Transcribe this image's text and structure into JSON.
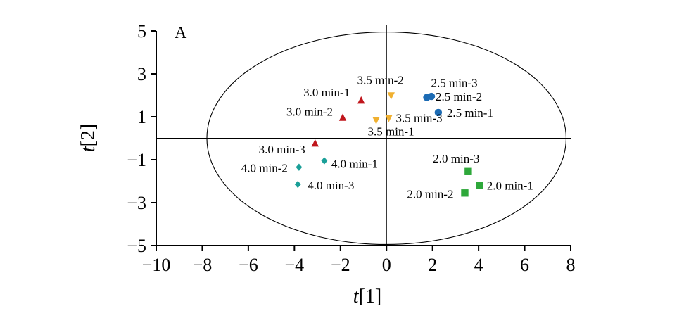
{
  "chart_data": {
    "type": "scatter",
    "panel_label": "A",
    "xlabel": {
      "italic": "t",
      "rest": "[1]"
    },
    "ylabel": {
      "italic": "t",
      "rest": "[2]"
    },
    "xlim": [
      -10,
      8
    ],
    "ylim": [
      -5,
      5
    ],
    "xticks": [
      -10,
      -8,
      -6,
      -4,
      -2,
      0,
      2,
      4,
      6,
      8
    ],
    "yticks": [
      -5,
      -3,
      -1,
      1,
      3,
      5
    ],
    "grid": false,
    "reference_lines": {
      "x": 0,
      "y": 0
    },
    "ellipse": {
      "center": [
        0,
        0
      ],
      "rx": 7.8,
      "ry": 4.95
    },
    "colors": {
      "3.0 min": "#c0161c",
      "3.5 min": "#f0b030",
      "2.5 min": "#1c6bb4",
      "2.0 min": "#2ea83a",
      "4.0 min": "#1a9f98",
      "axes": "#000000"
    },
    "series": [
      {
        "group": "3.0 min",
        "marker": "triangle-up",
        "color": "#c0161c",
        "points": [
          {
            "x": -1.1,
            "y": 1.75,
            "label": "3.0 min-1"
          },
          {
            "x": -1.9,
            "y": 0.95,
            "label": "3.0 min-2"
          },
          {
            "x": -3.1,
            "y": -0.25,
            "label": "3.0 min-3"
          }
        ]
      },
      {
        "group": "3.5 min",
        "marker": "triangle-down",
        "color": "#f0b030",
        "points": [
          {
            "x": -0.45,
            "y": 0.85,
            "label": "3.5 min-1"
          },
          {
            "x": 0.2,
            "y": 2.0,
            "label": "3.5 min-2"
          },
          {
            "x": 0.1,
            "y": 0.95,
            "label": "3.5 min-3"
          }
        ]
      },
      {
        "group": "2.5 min",
        "marker": "circle",
        "color": "#1c6bb4",
        "points": [
          {
            "x": 2.25,
            "y": 1.2,
            "label": "2.5 min-1"
          },
          {
            "x": 1.95,
            "y": 1.95,
            "label": "2.5 min-2"
          },
          {
            "x": 1.75,
            "y": 1.9,
            "label": "2.5 min-3"
          }
        ]
      },
      {
        "group": "2.0 min",
        "marker": "square",
        "color": "#2ea83a",
        "points": [
          {
            "x": 4.05,
            "y": -2.2,
            "label": "2.0 min-1"
          },
          {
            "x": 3.4,
            "y": -2.55,
            "label": "2.0 min-2"
          },
          {
            "x": 3.55,
            "y": -1.55,
            "label": "2.0 min-3"
          }
        ]
      },
      {
        "group": "4.0 min",
        "marker": "diamond",
        "color": "#1a9f98",
        "points": [
          {
            "x": -2.7,
            "y": -1.05,
            "label": "4.0 min-1"
          },
          {
            "x": -3.8,
            "y": -1.35,
            "label": "4.0 min-2"
          },
          {
            "x": -3.85,
            "y": -2.15,
            "label": "4.0 min-3"
          }
        ]
      }
    ]
  }
}
